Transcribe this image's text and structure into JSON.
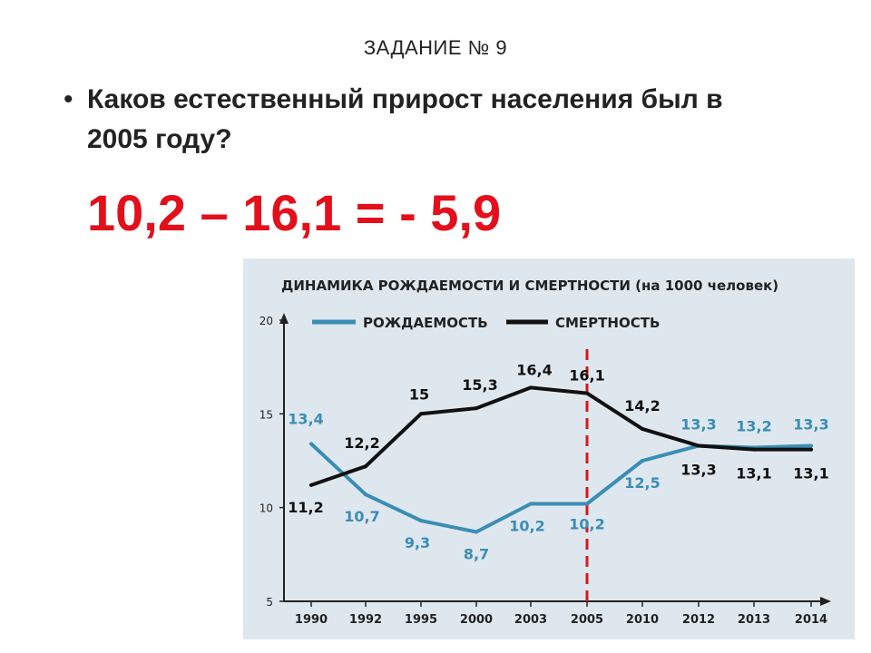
{
  "slide": {
    "title": "ЗАДАНИЕ № 9",
    "question": "Каков естественный прирост населения был в 2005 году?",
    "answer": "10,2 – 16,1 = - 5,9"
  },
  "colors": {
    "answer": "#e3101b",
    "birth_line": "#3a8db5",
    "death_line": "#111111",
    "marker_line": "#d9161d",
    "panel_bg": "#dfe7ee"
  },
  "chart_data": {
    "type": "line",
    "title": "ДИНАМИКА РОЖДАЕМОСТИ И СМЕРТНОСТИ (на 1000 человек)",
    "categories": [
      "1990",
      "1992",
      "1995",
      "2000",
      "2003",
      "2005",
      "2010",
      "2012",
      "2013",
      "2014"
    ],
    "series": [
      {
        "name": "РОЖДАЕМОСТЬ",
        "values": [
          13.4,
          10.7,
          9.3,
          8.7,
          10.2,
          10.2,
          12.5,
          13.3,
          13.2,
          13.3
        ],
        "labels": [
          "13,4",
          "10,7",
          "9,3",
          "8,7",
          "10,2",
          "10,2",
          "12,5",
          "13,3",
          "13,2",
          "13,3"
        ]
      },
      {
        "name": "СМЕРТНОСТЬ",
        "values": [
          11.2,
          12.2,
          15,
          15.3,
          16.4,
          16.1,
          14.2,
          13.3,
          13.1,
          13.1
        ],
        "labels": [
          "11,2",
          "12,2",
          "15",
          "15,3",
          "16,4",
          "16,1",
          "14,2",
          "13,3",
          "13,1",
          "13,1"
        ]
      }
    ],
    "y_ticks": [
      "20",
      "15",
      "10",
      "5"
    ],
    "ylim": [
      5,
      20
    ],
    "grid": false,
    "legend": "top",
    "highlight_category": "2005"
  }
}
